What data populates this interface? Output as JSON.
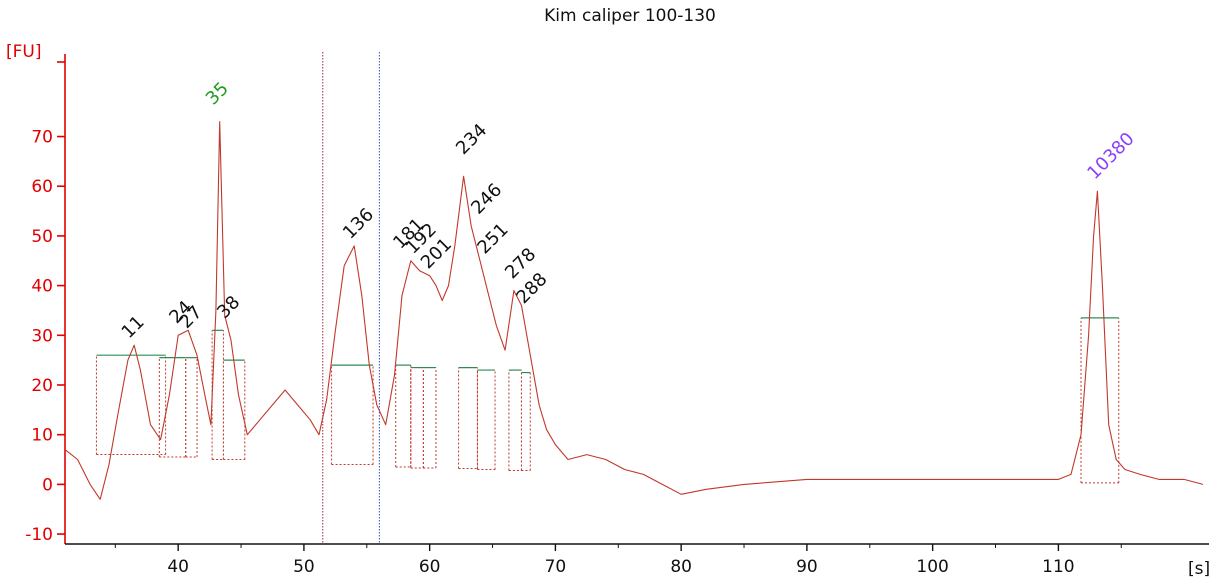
{
  "chart_data": {
    "type": "line",
    "title": "Kim caliper 100-130",
    "ylabel": "[FU]",
    "xlabel": "[s]",
    "xlim": [
      31,
      121.5
    ],
    "ylim": [
      -12,
      85
    ],
    "x_ticks": [
      40,
      50,
      60,
      70,
      80,
      90,
      100,
      110
    ],
    "y_ticks": [
      -10,
      0,
      10,
      20,
      30,
      40,
      50,
      60,
      70
    ],
    "grid": false,
    "colors": {
      "trace": "#c0392b",
      "axis": "#e00000",
      "ladder_peak": "#1f9c1f",
      "upper_marker": "#8a3ffc",
      "regular_peak": "#111111",
      "baseline_marker": "#2e8b57",
      "region_line_1": "#a0223a",
      "region_line_2": "#3050c0"
    },
    "region_lines_x": [
      51.5,
      56.0
    ],
    "trace": {
      "x": [
        31.0,
        32.0,
        33.0,
        33.8,
        34.5,
        35.2,
        36.0,
        36.5,
        37.0,
        37.8,
        38.6,
        39.3,
        40.0,
        40.8,
        41.5,
        42.2,
        42.6,
        43.0,
        43.3,
        43.7,
        44.2,
        44.8,
        45.5,
        46.5,
        47.5,
        48.5,
        49.5,
        50.5,
        51.2,
        51.8,
        52.5,
        53.2,
        54.0,
        54.6,
        55.2,
        55.8,
        56.5,
        57.2,
        57.8,
        58.5,
        59.2,
        60.0,
        60.5,
        61.0,
        61.5,
        62.0,
        62.7,
        63.3,
        64.0,
        64.6,
        65.3,
        66.0,
        66.7,
        67.3,
        68.0,
        68.7,
        69.3,
        70.0,
        71.0,
        72.5,
        74.0,
        75.5,
        77.0,
        78.5,
        80.0,
        82.0,
        85.0,
        90.0,
        95.0,
        100.0,
        105.0,
        108.0,
        110.0,
        111.0,
        111.8,
        112.4,
        112.8,
        113.1,
        113.5,
        114.0,
        114.6,
        115.3,
        116.5,
        118.0,
        120.0,
        121.5
      ],
      "y": [
        7,
        5,
        0,
        -3,
        4,
        14,
        25,
        28,
        23,
        12,
        9,
        18,
        30,
        31,
        26,
        17,
        12,
        35,
        73,
        34,
        29,
        18,
        10,
        13,
        16,
        19,
        16,
        13,
        10,
        17,
        31,
        44,
        48,
        38,
        24,
        16,
        12,
        22,
        38,
        45,
        43,
        42,
        40,
        37,
        40,
        48,
        62,
        52,
        45,
        39,
        32,
        27,
        39,
        36,
        26,
        16,
        11,
        8,
        5,
        6,
        5,
        3,
        2,
        0,
        -2,
        -1,
        0,
        1,
        1,
        1,
        1,
        1,
        1,
        2,
        10,
        30,
        50,
        59,
        40,
        12,
        5,
        3,
        2,
        1,
        1,
        0
      ]
    },
    "peaks": [
      {
        "label": "11",
        "x": 36.4,
        "y": 28,
        "kind": "regular"
      },
      {
        "label": "24",
        "x": 40.2,
        "y": 31,
        "kind": "regular"
      },
      {
        "label": "27",
        "x": 41.0,
        "y": 30,
        "kind": "regular"
      },
      {
        "label": "35",
        "x": 43.1,
        "y": 75,
        "kind": "ladder"
      },
      {
        "label": "38",
        "x": 44.0,
        "y": 32,
        "kind": "regular"
      },
      {
        "label": "136",
        "x": 54.0,
        "y": 48,
        "kind": "regular"
      },
      {
        "label": "181",
        "x": 58.0,
        "y": 46,
        "kind": "regular"
      },
      {
        "label": "192",
        "x": 59.0,
        "y": 45,
        "kind": "regular"
      },
      {
        "label": "201",
        "x": 60.2,
        "y": 42,
        "kind": "regular"
      },
      {
        "label": "234",
        "x": 63.0,
        "y": 65,
        "kind": "regular"
      },
      {
        "label": "246",
        "x": 64.2,
        "y": 53,
        "kind": "regular"
      },
      {
        "label": "251",
        "x": 64.7,
        "y": 45,
        "kind": "regular"
      },
      {
        "label": "278",
        "x": 66.9,
        "y": 40,
        "kind": "regular"
      },
      {
        "label": "288",
        "x": 67.8,
        "y": 35,
        "kind": "regular"
      },
      {
        "label": "10380",
        "x": 113.2,
        "y": 60,
        "kind": "upper_marker"
      }
    ],
    "peak_regions": [
      {
        "x0": 33.5,
        "x1": 39.0,
        "baseline": 6,
        "half": 26
      },
      {
        "x0": 38.5,
        "x1": 40.6,
        "baseline": 5.5,
        "half": 25.5
      },
      {
        "x0": 40.6,
        "x1": 41.5,
        "baseline": 5.5,
        "half": 25.5
      },
      {
        "x0": 42.7,
        "x1": 43.6,
        "baseline": 5,
        "half": 31
      },
      {
        "x0": 43.6,
        "x1": 45.3,
        "baseline": 5,
        "half": 25
      },
      {
        "x0": 52.2,
        "x1": 55.5,
        "baseline": 4,
        "half": 24
      },
      {
        "x0": 57.3,
        "x1": 58.5,
        "baseline": 3.5,
        "half": 24
      },
      {
        "x0": 58.5,
        "x1": 59.5,
        "baseline": 3.3,
        "half": 23.5
      },
      {
        "x0": 59.5,
        "x1": 60.5,
        "baseline": 3.3,
        "half": 23.5
      },
      {
        "x0": 62.3,
        "x1": 63.8,
        "baseline": 3.2,
        "half": 23.5
      },
      {
        "x0": 63.8,
        "x1": 65.2,
        "baseline": 3.0,
        "half": 23
      },
      {
        "x0": 66.3,
        "x1": 67.3,
        "baseline": 2.8,
        "half": 23
      },
      {
        "x0": 67.3,
        "x1": 68.0,
        "baseline": 2.8,
        "half": 22.5
      },
      {
        "x0": 111.8,
        "x1": 114.8,
        "baseline": 0.3,
        "half": 33.5
      }
    ]
  }
}
